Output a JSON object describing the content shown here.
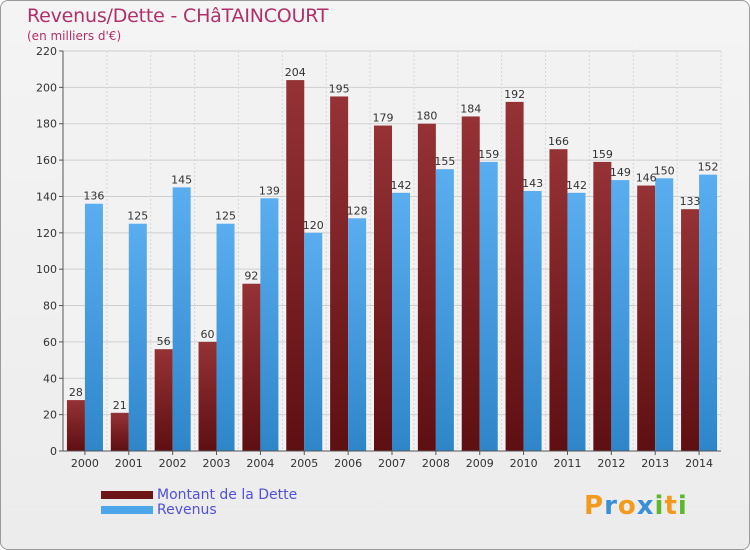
{
  "header": {
    "title": "Revenus/Dette - CHâTAINCOURT",
    "subtitle": "(en milliers d'€)"
  },
  "chart_data": {
    "type": "bar",
    "title": "Revenus/Dette - CHâTAINCOURT",
    "ylabel": "(en milliers d'€)",
    "xlabel": "",
    "ylim": [
      0,
      220
    ],
    "yticks": [
      0,
      20,
      40,
      60,
      80,
      100,
      120,
      140,
      160,
      180,
      200,
      220
    ],
    "categories": [
      "2000",
      "2001",
      "2002",
      "2003",
      "2004",
      "2005",
      "2006",
      "2007",
      "2008",
      "2009",
      "2010",
      "2011",
      "2012",
      "2013",
      "2014"
    ],
    "series": [
      {
        "name": "Montant de la Dette",
        "color": "#8b2a2e",
        "values": [
          28,
          21,
          56,
          60,
          92,
          204,
          195,
          179,
          180,
          184,
          192,
          166,
          159,
          146,
          133
        ]
      },
      {
        "name": "Revenus",
        "color": "#4da6ea",
        "values": [
          136,
          125,
          145,
          125,
          139,
          120,
          128,
          142,
          155,
          159,
          143,
          142,
          149,
          150,
          152
        ]
      }
    ],
    "grid": true,
    "legend_position": "bottom-left"
  },
  "legend": {
    "items": [
      {
        "label": "Montant de la Dette",
        "color": "#6e1518"
      },
      {
        "label": "Revenus",
        "color": "#4da6ea"
      }
    ]
  },
  "logo": {
    "letters": [
      "P",
      "r",
      "o",
      "x",
      "i",
      "t",
      "i"
    ],
    "colors": [
      "#f39a1c",
      "#3a8fd6",
      "#f39a1c",
      "#3a8fd6",
      "#5cb82e",
      "#f39a1c",
      "#5cb82e"
    ]
  }
}
